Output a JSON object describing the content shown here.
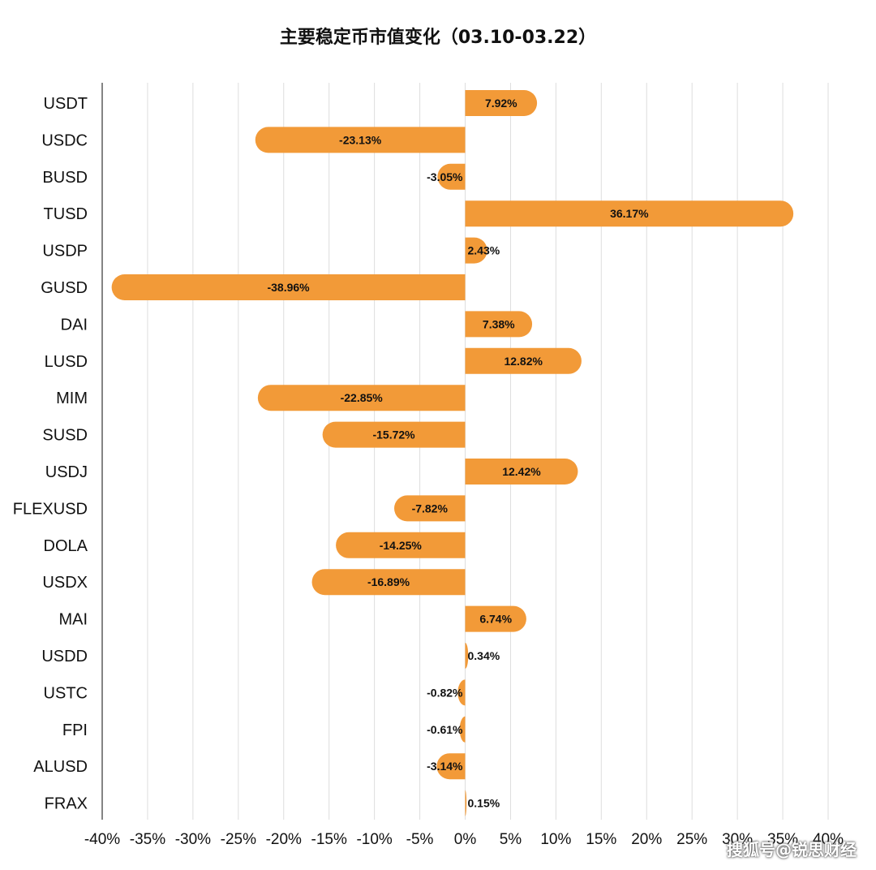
{
  "chart_data": {
    "type": "bar",
    "orientation": "horizontal",
    "title": "主要稳定币市值变化（03.10-03.22）",
    "xlabel": "",
    "ylabel": "",
    "categories": [
      "USDT",
      "USDC",
      "BUSD",
      "TUSD",
      "USDP",
      "GUSD",
      "DAI",
      "LUSD",
      "MIM",
      "SUSD",
      "USDJ",
      "FLEXUSD",
      "DOLA",
      "USDX",
      "MAI",
      "USDD",
      "USTC",
      "FPI",
      "ALUSD",
      "FRAX"
    ],
    "values": [
      7.92,
      -23.13,
      -3.05,
      36.17,
      2.43,
      -38.96,
      7.38,
      12.82,
      -22.85,
      -15.72,
      12.42,
      -7.82,
      -14.25,
      -16.89,
      6.74,
      0.34,
      -0.82,
      -0.61,
      -3.14,
      0.15
    ],
    "data_labels": [
      "7.92%",
      "-23.13%",
      "-3.05%",
      "36.17%",
      "2.43%",
      "-38.96%",
      "7.38%",
      "12.82%",
      "-22.85%",
      "-15.72%",
      "12.42%",
      "-7.82%",
      "-14.25%",
      "-16.89%",
      "6.74%",
      "0.34%",
      "-0.82%",
      "-0.61%",
      "-3.14%",
      "0.15%"
    ],
    "xlim": [
      -40,
      40
    ],
    "x_ticks": [
      -40,
      -35,
      -30,
      -25,
      -20,
      -15,
      -10,
      -5,
      0,
      5,
      10,
      15,
      20,
      25,
      30,
      35,
      40
    ],
    "x_tick_labels": [
      "-40%",
      "-35%",
      "-30%",
      "-25%",
      "-20%",
      "-15%",
      "-10%",
      "-5%",
      "0%",
      "5%",
      "10%",
      "15%",
      "20%",
      "25%",
      "30%",
      "35%",
      "40%"
    ],
    "grid": true,
    "bar_color": "#F29A38",
    "grid_color": "#DDDDDD"
  },
  "watermark": "搜狐号@锐思财经"
}
